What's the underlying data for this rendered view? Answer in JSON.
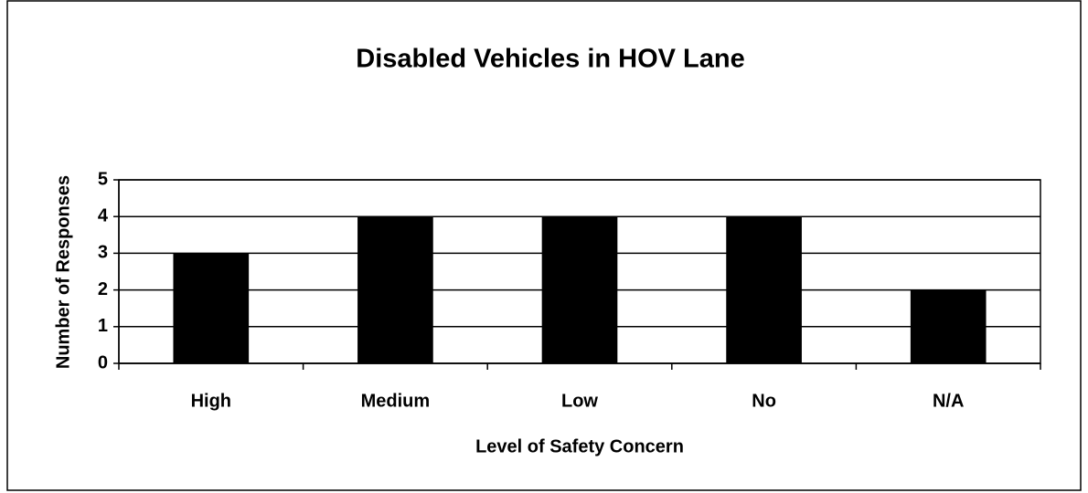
{
  "chart_data": {
    "type": "bar",
    "title": "Disabled Vehicles in HOV Lane",
    "x_label": "Level of Safety Concern",
    "y_label": "Number of Responses",
    "categories": [
      "High",
      "Medium",
      "Low",
      "No",
      "N/A"
    ],
    "values": [
      3,
      4,
      4,
      4,
      2
    ],
    "color": "#000000",
    "ylim": [
      0,
      5
    ],
    "yticks": [
      0,
      1,
      2,
      3,
      4,
      5
    ],
    "grid": true
  }
}
